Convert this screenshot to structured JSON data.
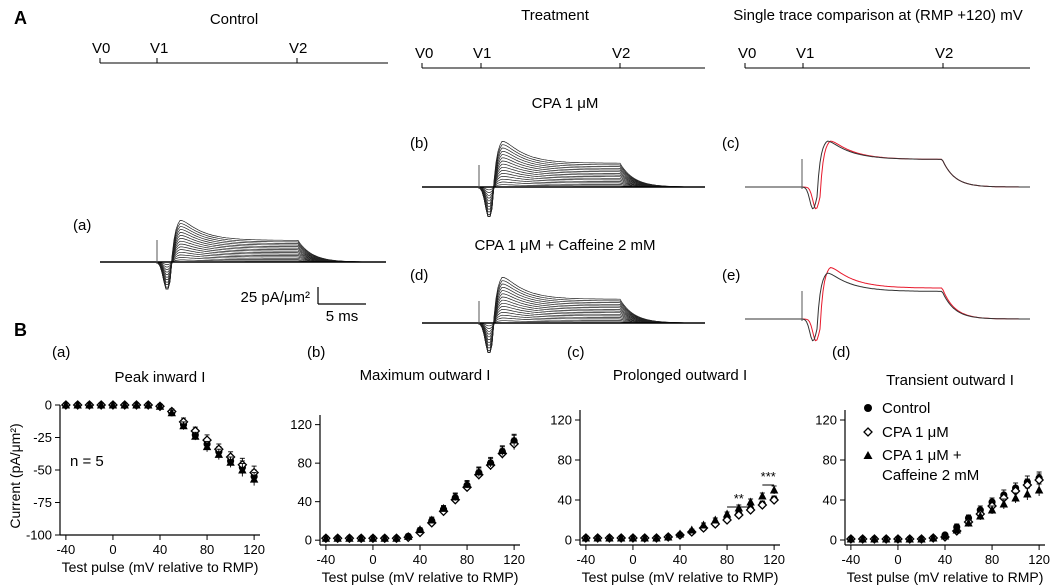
{
  "panel_A": {
    "label": "A",
    "titles": {
      "control": "Control",
      "treatment": "Treatment",
      "comparison": "Single trace comparison at (RMP +120) mV"
    },
    "protocol_labels": [
      "V0",
      "V1",
      "V2"
    ],
    "condition_labels": {
      "cpa": "CPA 1 μM",
      "cpa_caffeine": "CPA 1 μM + Caffeine 2 mM"
    },
    "sublabels": {
      "a": "(a)",
      "b": "(b)",
      "c": "(c)",
      "d": "(d)",
      "e": "(e)"
    },
    "scalebar": {
      "y_label": "25 pA/μm²",
      "x_label": "5 ms"
    },
    "colors": {
      "control_trace": "#333333",
      "treatment_trace": "#e8192c"
    }
  },
  "panel_B": {
    "label": "B",
    "legend": {
      "control": "Control",
      "cpa": "CPA 1 μM",
      "cpa_caffeine_line1": "CPA 1 μM +",
      "cpa_caffeine_line2": "Caffeine 2 mM"
    },
    "n_label": "n = 5",
    "ylabel": "Current (pA/μm²)",
    "xlabel": "Test pulse (mV relative to RMP)"
  },
  "chart_data": [
    {
      "type": "scatter",
      "id": "a",
      "sublabel": "(a)",
      "title": "Peak inward I",
      "xlabel": "Test pulse (mV relative to RMP)",
      "ylabel": "Current (pA/μm²)",
      "xlim": [
        -45,
        125
      ],
      "ylim": [
        -100,
        0
      ],
      "xticks": [
        -40,
        0,
        40,
        80,
        120
      ],
      "yticks": [
        0,
        -25,
        -50,
        -75,
        -100
      ],
      "x": [
        -40,
        -30,
        -20,
        -10,
        0,
        10,
        20,
        30,
        40,
        50,
        60,
        70,
        80,
        90,
        100,
        110,
        120
      ],
      "series": [
        {
          "name": "Control",
          "marker": "circle",
          "values": [
            0,
            0,
            0,
            0,
            0,
            0,
            0,
            0,
            -1,
            -6,
            -15,
            -23,
            -30,
            -36,
            -43,
            -48,
            -55
          ],
          "errors": [
            0,
            0,
            0,
            0,
            0,
            0,
            0,
            0,
            1,
            2,
            3,
            3,
            4,
            4,
            4,
            5,
            5
          ]
        },
        {
          "name": "CPA 1 μM",
          "marker": "diamond",
          "values": [
            0,
            0,
            0,
            0,
            0,
            0,
            0,
            0,
            -1,
            -5,
            -13,
            -20,
            -27,
            -34,
            -40,
            -46,
            -52
          ],
          "errors": [
            0,
            0,
            0,
            0,
            0,
            0,
            0,
            0,
            1,
            2,
            3,
            3,
            4,
            4,
            4,
            5,
            5
          ]
        },
        {
          "name": "CPA 1 μM + Caffeine 2 mM",
          "marker": "triangle",
          "values": [
            0,
            0,
            0,
            0,
            0,
            0,
            0,
            0,
            -1,
            -6,
            -16,
            -24,
            -32,
            -38,
            -44,
            -50,
            -57
          ],
          "errors": [
            0,
            0,
            0,
            0,
            0,
            0,
            0,
            0,
            1,
            2,
            3,
            3,
            4,
            4,
            4,
            5,
            5
          ]
        }
      ]
    },
    {
      "type": "scatter",
      "id": "b",
      "sublabel": "(b)",
      "title": "Maximum outward I",
      "xlabel": "Test pulse (mV relative to RMP)",
      "xlim": [
        -45,
        125
      ],
      "ylim": [
        -5,
        130
      ],
      "xticks": [
        -40,
        0,
        40,
        80,
        120
      ],
      "yticks": [
        0,
        40,
        80,
        120
      ],
      "x": [
        -40,
        -30,
        -20,
        -10,
        0,
        10,
        20,
        30,
        40,
        50,
        60,
        70,
        80,
        90,
        100,
        110,
        120
      ],
      "series": [
        {
          "name": "Control",
          "marker": "circle",
          "values": [
            2,
            2,
            2,
            2,
            2,
            2,
            2,
            4,
            10,
            20,
            32,
            44,
            57,
            70,
            80,
            92,
            103
          ],
          "errors": [
            1,
            1,
            1,
            1,
            1,
            1,
            1,
            1,
            2,
            3,
            3,
            4,
            4,
            5,
            5,
            5,
            6
          ]
        },
        {
          "name": "CPA 1 μM",
          "marker": "diamond",
          "values": [
            2,
            2,
            2,
            2,
            2,
            2,
            2,
            3,
            8,
            18,
            30,
            42,
            55,
            68,
            78,
            90,
            100
          ],
          "errors": [
            1,
            1,
            1,
            1,
            1,
            1,
            1,
            1,
            2,
            3,
            3,
            4,
            4,
            5,
            5,
            5,
            6
          ]
        },
        {
          "name": "CPA 1 μM + Caffeine 2 mM",
          "marker": "triangle",
          "values": [
            2,
            2,
            2,
            2,
            2,
            2,
            2,
            4,
            11,
            21,
            33,
            45,
            58,
            71,
            81,
            93,
            104
          ],
          "errors": [
            1,
            1,
            1,
            1,
            1,
            1,
            1,
            1,
            2,
            3,
            3,
            4,
            4,
            5,
            5,
            5,
            6
          ]
        }
      ]
    },
    {
      "type": "scatter",
      "id": "c",
      "sublabel": "(c)",
      "title": "Prolonged outward I",
      "xlabel": "Test pulse (mV relative to RMP)",
      "xlim": [
        -45,
        125
      ],
      "ylim": [
        -5,
        130
      ],
      "xticks": [
        -40,
        0,
        40,
        80,
        120
      ],
      "yticks": [
        0,
        40,
        80,
        120
      ],
      "x": [
        -40,
        -30,
        -20,
        -10,
        0,
        10,
        20,
        30,
        40,
        50,
        60,
        70,
        80,
        90,
        100,
        110,
        120
      ],
      "series": [
        {
          "name": "Control",
          "marker": "circle",
          "values": [
            2,
            2,
            2,
            2,
            2,
            2,
            2,
            3,
            5,
            8,
            12,
            16,
            21,
            26,
            31,
            36,
            41
          ],
          "errors": [
            1,
            1,
            1,
            1,
            1,
            1,
            1,
            1,
            1,
            1,
            2,
            2,
            2,
            2,
            3,
            3,
            3
          ]
        },
        {
          "name": "CPA 1 μM",
          "marker": "diamond",
          "values": [
            2,
            2,
            2,
            2,
            2,
            2,
            2,
            3,
            5,
            8,
            12,
            16,
            20,
            25,
            30,
            35,
            40
          ],
          "errors": [
            1,
            1,
            1,
            1,
            1,
            1,
            1,
            1,
            1,
            1,
            2,
            2,
            2,
            2,
            3,
            3,
            3
          ]
        },
        {
          "name": "CPA 1 μM + Caffeine 2 mM",
          "marker": "triangle",
          "values": [
            2,
            2,
            2,
            2,
            2,
            2,
            2,
            3,
            6,
            10,
            15,
            20,
            26,
            32,
            38,
            44,
            50
          ],
          "errors": [
            1,
            1,
            1,
            1,
            1,
            1,
            1,
            1,
            1,
            1,
            2,
            2,
            2,
            3,
            3,
            3,
            4
          ]
        }
      ],
      "significance": [
        {
          "label": "**",
          "x_from": 80,
          "x_to": 100,
          "y": 33
        },
        {
          "label": "***",
          "x_from": 110,
          "x_to": 120,
          "y": 55
        }
      ]
    },
    {
      "type": "scatter",
      "id": "d",
      "sublabel": "(d)",
      "title": "Transient outward I",
      "xlabel": "Test pulse (mV relative to RMP)",
      "xlim": [
        -45,
        125
      ],
      "ylim": [
        -5,
        130
      ],
      "xticks": [
        -40,
        0,
        40,
        80,
        120
      ],
      "yticks": [
        0,
        40,
        80,
        120
      ],
      "legend_position": "top-left",
      "x": [
        -40,
        -30,
        -20,
        -10,
        0,
        10,
        20,
        30,
        40,
        50,
        60,
        70,
        80,
        90,
        100,
        110,
        120
      ],
      "series": [
        {
          "name": "Control",
          "marker": "circle",
          "values": [
            1,
            1,
            1,
            1,
            1,
            1,
            1,
            2,
            5,
            13,
            22,
            30,
            38,
            45,
            52,
            58,
            62
          ],
          "errors": [
            1,
            1,
            1,
            1,
            1,
            1,
            1,
            1,
            2,
            3,
            3,
            4,
            4,
            5,
            5,
            6,
            6
          ]
        },
        {
          "name": "CPA 1 μM",
          "marker": "diamond",
          "values": [
            1,
            1,
            1,
            1,
            1,
            1,
            1,
            2,
            3,
            9,
            18,
            26,
            34,
            42,
            49,
            55,
            60
          ],
          "errors": [
            1,
            1,
            1,
            1,
            1,
            1,
            1,
            1,
            2,
            3,
            3,
            4,
            4,
            5,
            5,
            6,
            6
          ]
        },
        {
          "name": "CPA 1 μM + Caffeine 2 mM",
          "marker": "triangle",
          "values": [
            1,
            1,
            1,
            1,
            1,
            1,
            1,
            2,
            4,
            10,
            17,
            24,
            30,
            36,
            42,
            46,
            50
          ],
          "errors": [
            1,
            1,
            1,
            1,
            1,
            1,
            1,
            1,
            2,
            3,
            3,
            4,
            4,
            5,
            5,
            6,
            6
          ]
        }
      ]
    }
  ]
}
